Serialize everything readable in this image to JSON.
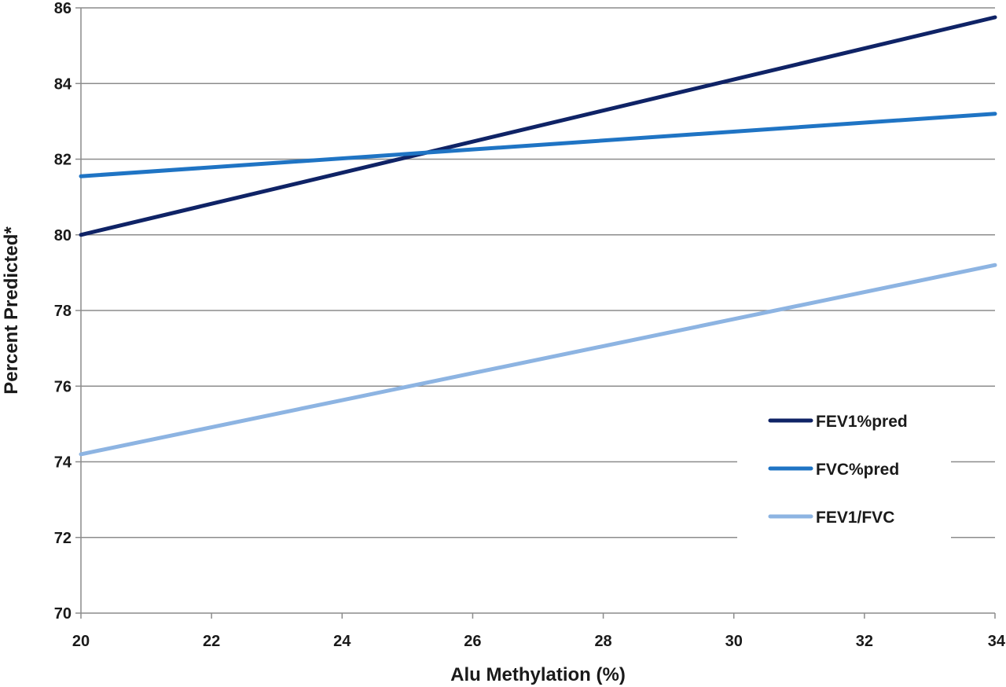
{
  "chart_data": {
    "type": "line",
    "title": "",
    "xlabel": "Alu Methylation (%)",
    "ylabel": "Percent Predicted*",
    "xlim": [
      20,
      34
    ],
    "ylim": [
      70,
      86
    ],
    "x_ticks": [
      "20",
      "22",
      "24",
      "26",
      "28",
      "30",
      "32",
      "34"
    ],
    "y_ticks": [
      "70",
      "72",
      "74",
      "76",
      "78",
      "80",
      "82",
      "84",
      "86"
    ],
    "grid": "horizontal",
    "legend_position": "bottom-right",
    "series": [
      {
        "name": "FEV1%pred",
        "color": "#0f2366",
        "x": [
          20,
          34
        ],
        "y": [
          80.0,
          85.75
        ]
      },
      {
        "name": "FVC%pred",
        "color": "#1f74c4",
        "x": [
          20,
          34
        ],
        "y": [
          81.55,
          83.2
        ]
      },
      {
        "name": "FEV1/FVC",
        "color": "#8db4e2",
        "x": [
          20,
          34
        ],
        "y": [
          74.2,
          79.2
        ]
      }
    ]
  }
}
